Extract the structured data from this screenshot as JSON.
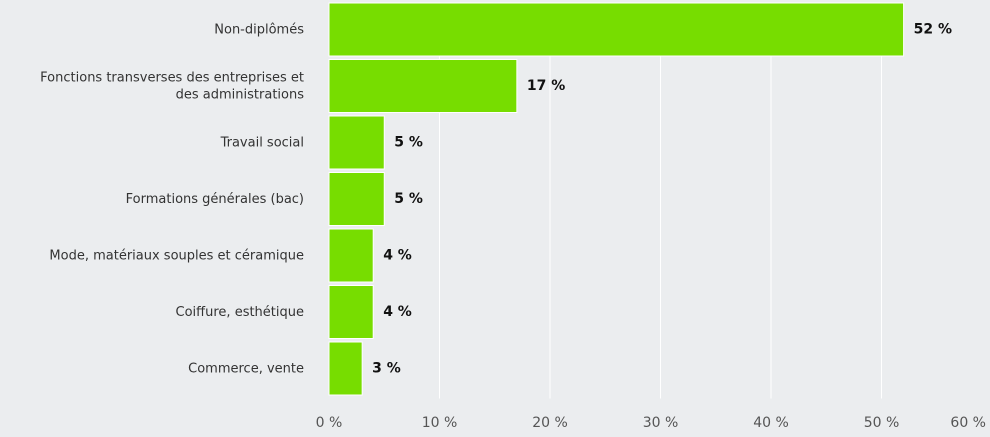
{
  "chart_data": {
    "type": "bar",
    "orientation": "horizontal",
    "title": "",
    "xlabel": "",
    "ylabel": "",
    "categories": [
      [
        "Non-diplômés"
      ],
      [
        "Fonctions transverses des entreprises et",
        "des administrations"
      ],
      [
        "Travail social"
      ],
      [
        "Formations générales (bac)"
      ],
      [
        "Mode, matériaux souples et céramique"
      ],
      [
        "Coiffure, esthétique"
      ],
      [
        "Commerce, vente"
      ]
    ],
    "values": [
      52,
      17,
      5,
      5,
      4,
      4,
      3
    ],
    "value_labels": [
      "52 %",
      "17 %",
      "5 %",
      "5 %",
      "4 %",
      "4 %",
      "3 %"
    ],
    "xlim": [
      0,
      60
    ],
    "ticks": [
      0,
      10,
      20,
      30,
      40,
      50,
      60
    ],
    "tick_labels": [
      "0 %",
      "10 %",
      "20 %",
      "30 %",
      "40 %",
      "50 %",
      "60 %"
    ],
    "grid": true,
    "legend": "none",
    "bar_color": "#77dd00",
    "background_color": "#ebedef",
    "grid_color": "#ffffff"
  }
}
